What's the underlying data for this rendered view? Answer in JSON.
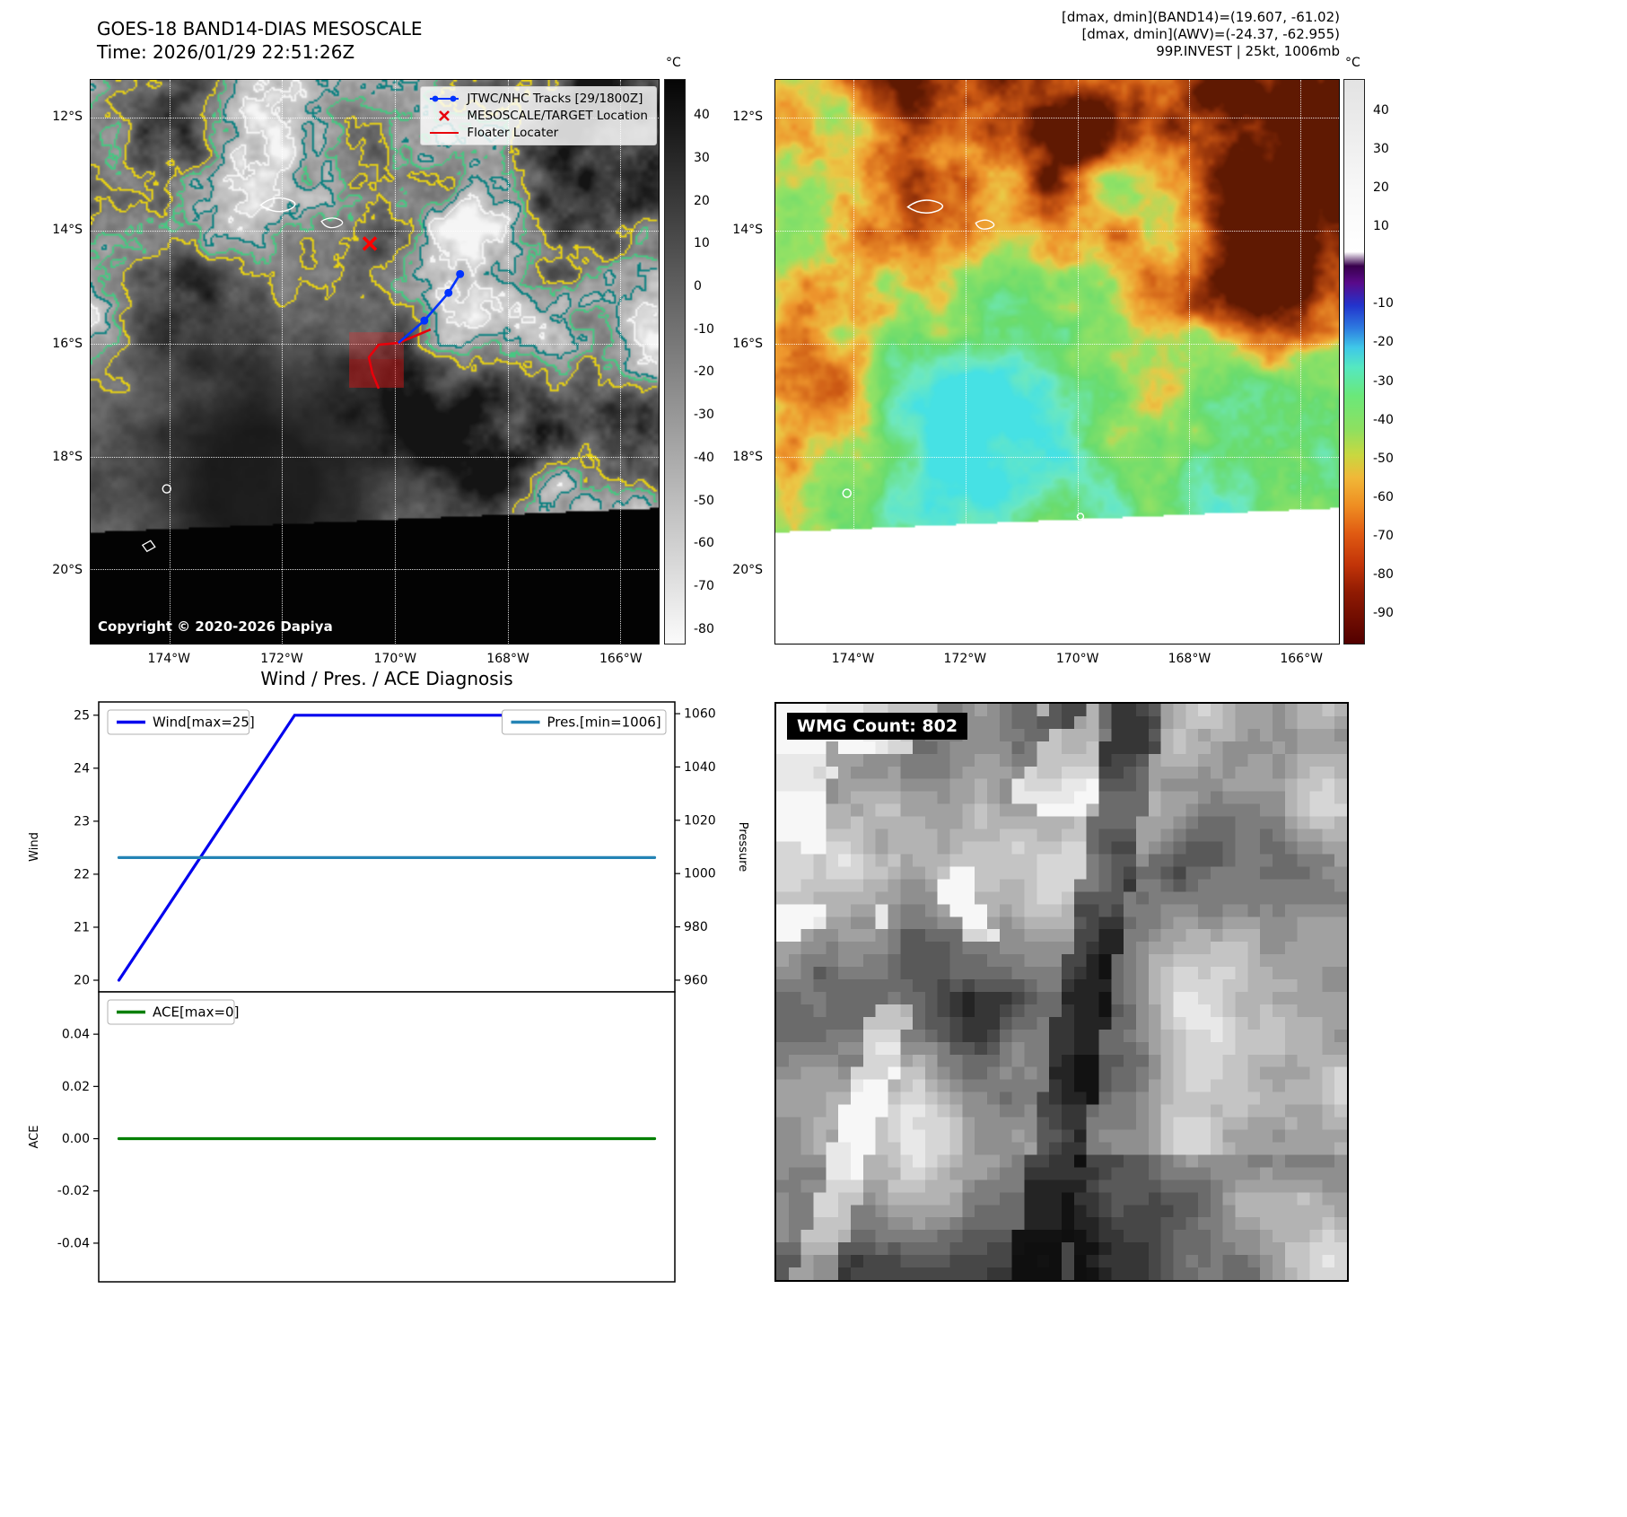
{
  "band14_panel": {
    "title": "GOES-18 BAND14-DIAS MESOSCALE",
    "time": "Time: 2026/01/29 22:51:26Z",
    "copyright": "Copyright © 2020-2026 Dapiya",
    "legend": {
      "track": "JTWC/NHC Tracks [29/1800Z]",
      "target": "MESOSCALE/TARGET Location",
      "floater": "Floater Locater"
    },
    "colorbar": {
      "unit": "°C",
      "ticks": [
        "40",
        "30",
        "20",
        "10",
        "0",
        "-10",
        "-20",
        "-30",
        "-40",
        "-50",
        "-60",
        "-70",
        "-80"
      ]
    },
    "lat_ticks": [
      "12°S",
      "14°S",
      "16°S",
      "18°S",
      "20°S"
    ],
    "lon_ticks": [
      "174°W",
      "172°W",
      "170°W",
      "168°W",
      "166°W"
    ]
  },
  "awv_panel": {
    "header": [
      "[dmax, dmin](BAND14)=(19.607, -61.02)",
      "[dmax, dmin](AWV)=(-24.37, -62.955)",
      "99P.INVEST | 25kt, 1006mb"
    ],
    "colorbar": {
      "unit": "°C",
      "ticks": [
        "40",
        "30",
        "20",
        "10",
        "-10",
        "-20",
        "-30",
        "-40",
        "-50",
        "-60",
        "-70",
        "-80",
        "-90"
      ]
    },
    "lat_ticks": [
      "12°S",
      "14°S",
      "16°S",
      "18°S",
      "20°S"
    ],
    "lon_ticks": [
      "174°W",
      "172°W",
      "170°W",
      "168°W",
      "166°W"
    ]
  },
  "wmg_panel": {
    "count_label": "WMG Count: 802"
  },
  "chart_data": {
    "type": "line",
    "title": "Wind / Pres. / ACE Diagnosis",
    "charts": [
      {
        "left_axis": {
          "label": "Wind",
          "ticks": [
            25,
            24,
            23,
            22,
            21,
            20
          ],
          "tick_labels": [
            "25",
            "24",
            "23",
            "22",
            "21",
            "20"
          ],
          "range": [
            19.78,
            25.25
          ]
        },
        "right_axis": {
          "label": "Pressure",
          "ticks": [
            1060,
            1040,
            1020,
            1000,
            980,
            960
          ],
          "tick_labels": [
            "1060",
            "1040",
            "1020",
            "1000",
            "980",
            "960"
          ],
          "range": [
            955.6,
            1064.4
          ]
        },
        "series": [
          {
            "name": "Wind[max=25]",
            "color": "#0000ee",
            "axis": "left",
            "legend_pos": "left",
            "x": [
              0.035,
              0.34,
              0.96
            ],
            "y": [
              20,
              25,
              25
            ]
          },
          {
            "name": "Pres.[min=1006]",
            "color": "#2484b5",
            "axis": "right",
            "legend_pos": "right",
            "x": [
              0.035,
              0.965
            ],
            "y": [
              1006,
              1006
            ]
          }
        ]
      },
      {
        "left_axis": {
          "label": "ACE",
          "ticks": [
            0.04,
            0.02,
            0,
            -0.02,
            -0.04
          ],
          "tick_labels": [
            "0.04",
            "0.02",
            "0.00",
            "-0.02",
            "-0.04"
          ],
          "range": [
            -0.0548,
            0.0562
          ]
        },
        "series": [
          {
            "name": "ACE[max=0]",
            "color": "#007f00",
            "axis": "left",
            "legend_pos": "left",
            "x": [
              0.035,
              0.965
            ],
            "y": [
              0,
              0
            ]
          }
        ]
      }
    ]
  }
}
